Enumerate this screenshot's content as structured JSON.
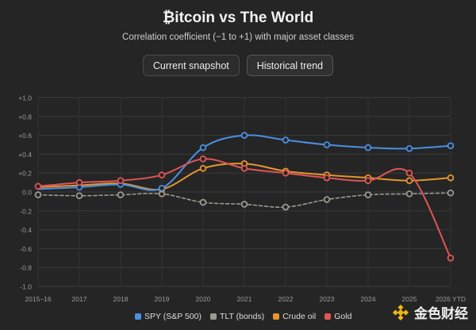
{
  "header": {
    "title": "₿itcoin vs The World",
    "subtitle": "Correlation coefficient (−1 to +1) with major asset classes"
  },
  "tabs": [
    {
      "label": "Current snapshot",
      "active": false
    },
    {
      "label": "Historical trend",
      "active": true
    }
  ],
  "chart_data": {
    "type": "line",
    "title": "₿itcoin vs The World",
    "subtitle": "Correlation coefficient (−1 to +1) with major asset classes",
    "xlabel": "",
    "ylabel": "",
    "ylim": [
      -1.0,
      1.0
    ],
    "yticks": [
      1.0,
      0.8,
      0.6,
      0.4,
      0.2,
      0.0,
      -0.2,
      -0.4,
      -0.6,
      -0.8,
      -1.0
    ],
    "ytick_labels": [
      "+1.0",
      "+0.8",
      "+0.6",
      "+0.4",
      "+0.2",
      "0.0",
      "-0.2",
      "-0.4",
      "-0.6",
      "-0.8",
      "-1.0"
    ],
    "grid": true,
    "legend_position": "bottom",
    "categories": [
      "2015–16",
      "2017",
      "2018",
      "2019",
      "2020",
      "2021",
      "2022",
      "2023",
      "2024",
      "2025",
      "2026 YTD"
    ],
    "series": [
      {
        "name": "SPY (S&P 500)",
        "color": "#4a90e2",
        "dashed": false,
        "markers": [
          1,
          2,
          3,
          4,
          5,
          6,
          7,
          8,
          9,
          10
        ],
        "values": [
          0.03,
          0.05,
          0.08,
          0.04,
          0.47,
          0.6,
          0.55,
          0.5,
          0.47,
          0.46,
          0.49
        ]
      },
      {
        "name": "TLT (bonds)",
        "color": "#9a9a92",
        "dashed": true,
        "markers": [
          0,
          1,
          2,
          3,
          4,
          5,
          6,
          7,
          8,
          9,
          10
        ],
        "values": [
          -0.03,
          -0.04,
          -0.03,
          -0.02,
          -0.11,
          -0.13,
          -0.16,
          -0.08,
          -0.03,
          -0.02,
          -0.01
        ]
      },
      {
        "name": "Crude oil",
        "color": "#e5962e",
        "dashed": false,
        "markers": [
          3,
          4,
          5,
          6,
          7,
          8,
          9,
          10
        ],
        "values": [
          0.05,
          0.07,
          0.09,
          0.03,
          0.25,
          0.3,
          0.22,
          0.18,
          0.15,
          0.12,
          0.15
        ]
      },
      {
        "name": "Gold",
        "color": "#e05555",
        "dashed": false,
        "markers": [
          0,
          1,
          2,
          3,
          4,
          5,
          6,
          7,
          8,
          9,
          10
        ],
        "values": [
          0.06,
          0.1,
          0.12,
          0.18,
          0.35,
          0.25,
          0.2,
          0.15,
          0.12,
          0.2,
          -0.7
        ]
      }
    ]
  },
  "legend": [
    {
      "label": "SPY (S&P 500)",
      "color": "#4a90e2"
    },
    {
      "label": "TLT (bonds)",
      "color": "#9a9a92"
    },
    {
      "label": "Crude oil",
      "color": "#e5962e"
    },
    {
      "label": "Gold",
      "color": "#e05555"
    }
  ],
  "watermark": {
    "text": "金色财经",
    "icon": "binance-diamond-icon",
    "color": "#f0b90b"
  }
}
